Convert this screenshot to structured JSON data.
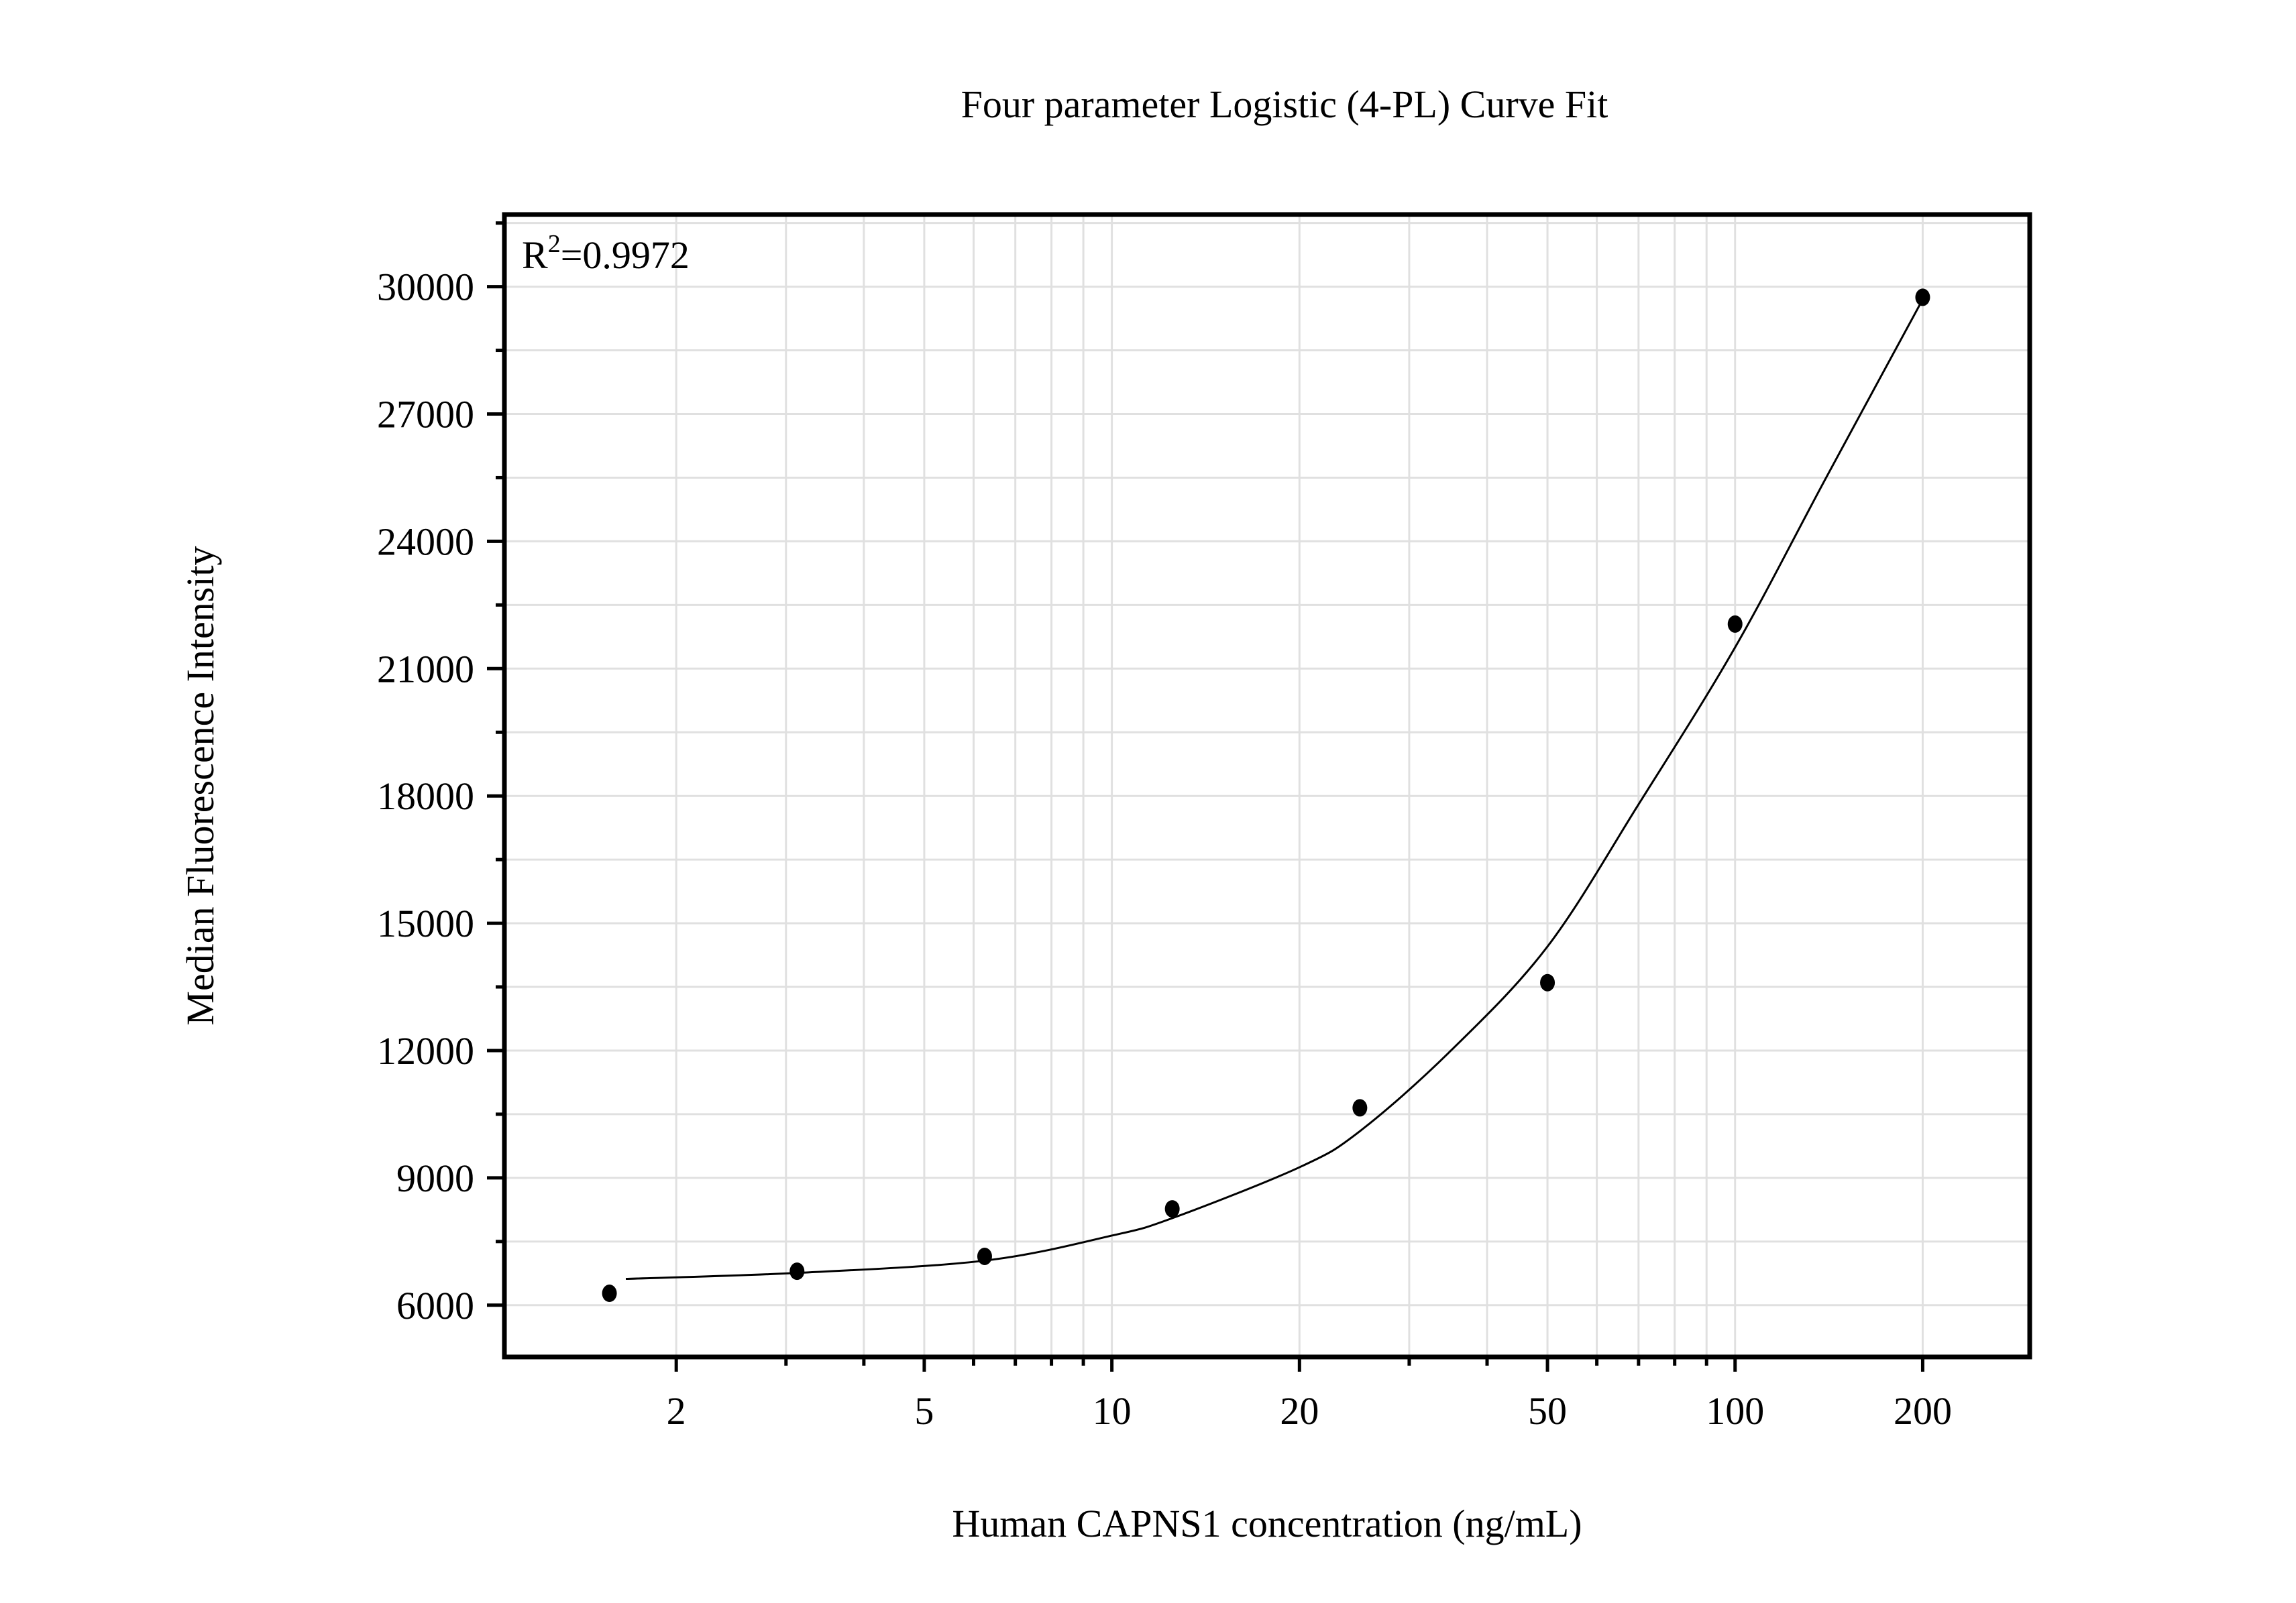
{
  "chart_data": {
    "type": "scatter",
    "title": "Four parameter Logistic (4-PL) Curve Fit",
    "xlabel": "Human CAPNS1 concentration (ng/mL)",
    "ylabel": "Median Fluorescence Intensity",
    "annotation": {
      "prefix": "R",
      "superscript": "2",
      "value": "=0.9972"
    },
    "x_scale": "log",
    "xlim": [
      1.06,
      297
    ],
    "ylim": [
      4780,
      31700
    ],
    "x_ticks": [
      2,
      5,
      10,
      20,
      50,
      100,
      200
    ],
    "x_tick_labels": [
      "2",
      "5",
      "10",
      "20",
      "50",
      "100",
      "200"
    ],
    "y_ticks": [
      6000,
      9000,
      12000,
      15000,
      18000,
      21000,
      24000,
      27000,
      30000
    ],
    "y_tick_labels": [
      "6000",
      "9000",
      "12000",
      "15000",
      "18000",
      "21000",
      "24000",
      "27000",
      "30000"
    ],
    "grid": true,
    "points": {
      "x": [
        1.5625,
        3.125,
        6.25,
        12.5,
        25,
        50,
        100,
        200
      ],
      "y": [
        6280,
        6800,
        7150,
        8270,
        10650,
        13600,
        22050,
        29750
      ]
    },
    "fit_curve": {
      "x": [
        1.66,
        3.125,
        6.25,
        10,
        12.5,
        20,
        25,
        35,
        50,
        70,
        100,
        140,
        200
      ],
      "y": [
        6620,
        6760,
        7050,
        7640,
        8050,
        9250,
        10100,
        12000,
        14450,
        17800,
        21500,
        25500,
        29700
      ]
    },
    "colors": {
      "points": "#000000",
      "curve": "#000000",
      "grid": "#e0e0e0",
      "axes": "#000000"
    }
  }
}
